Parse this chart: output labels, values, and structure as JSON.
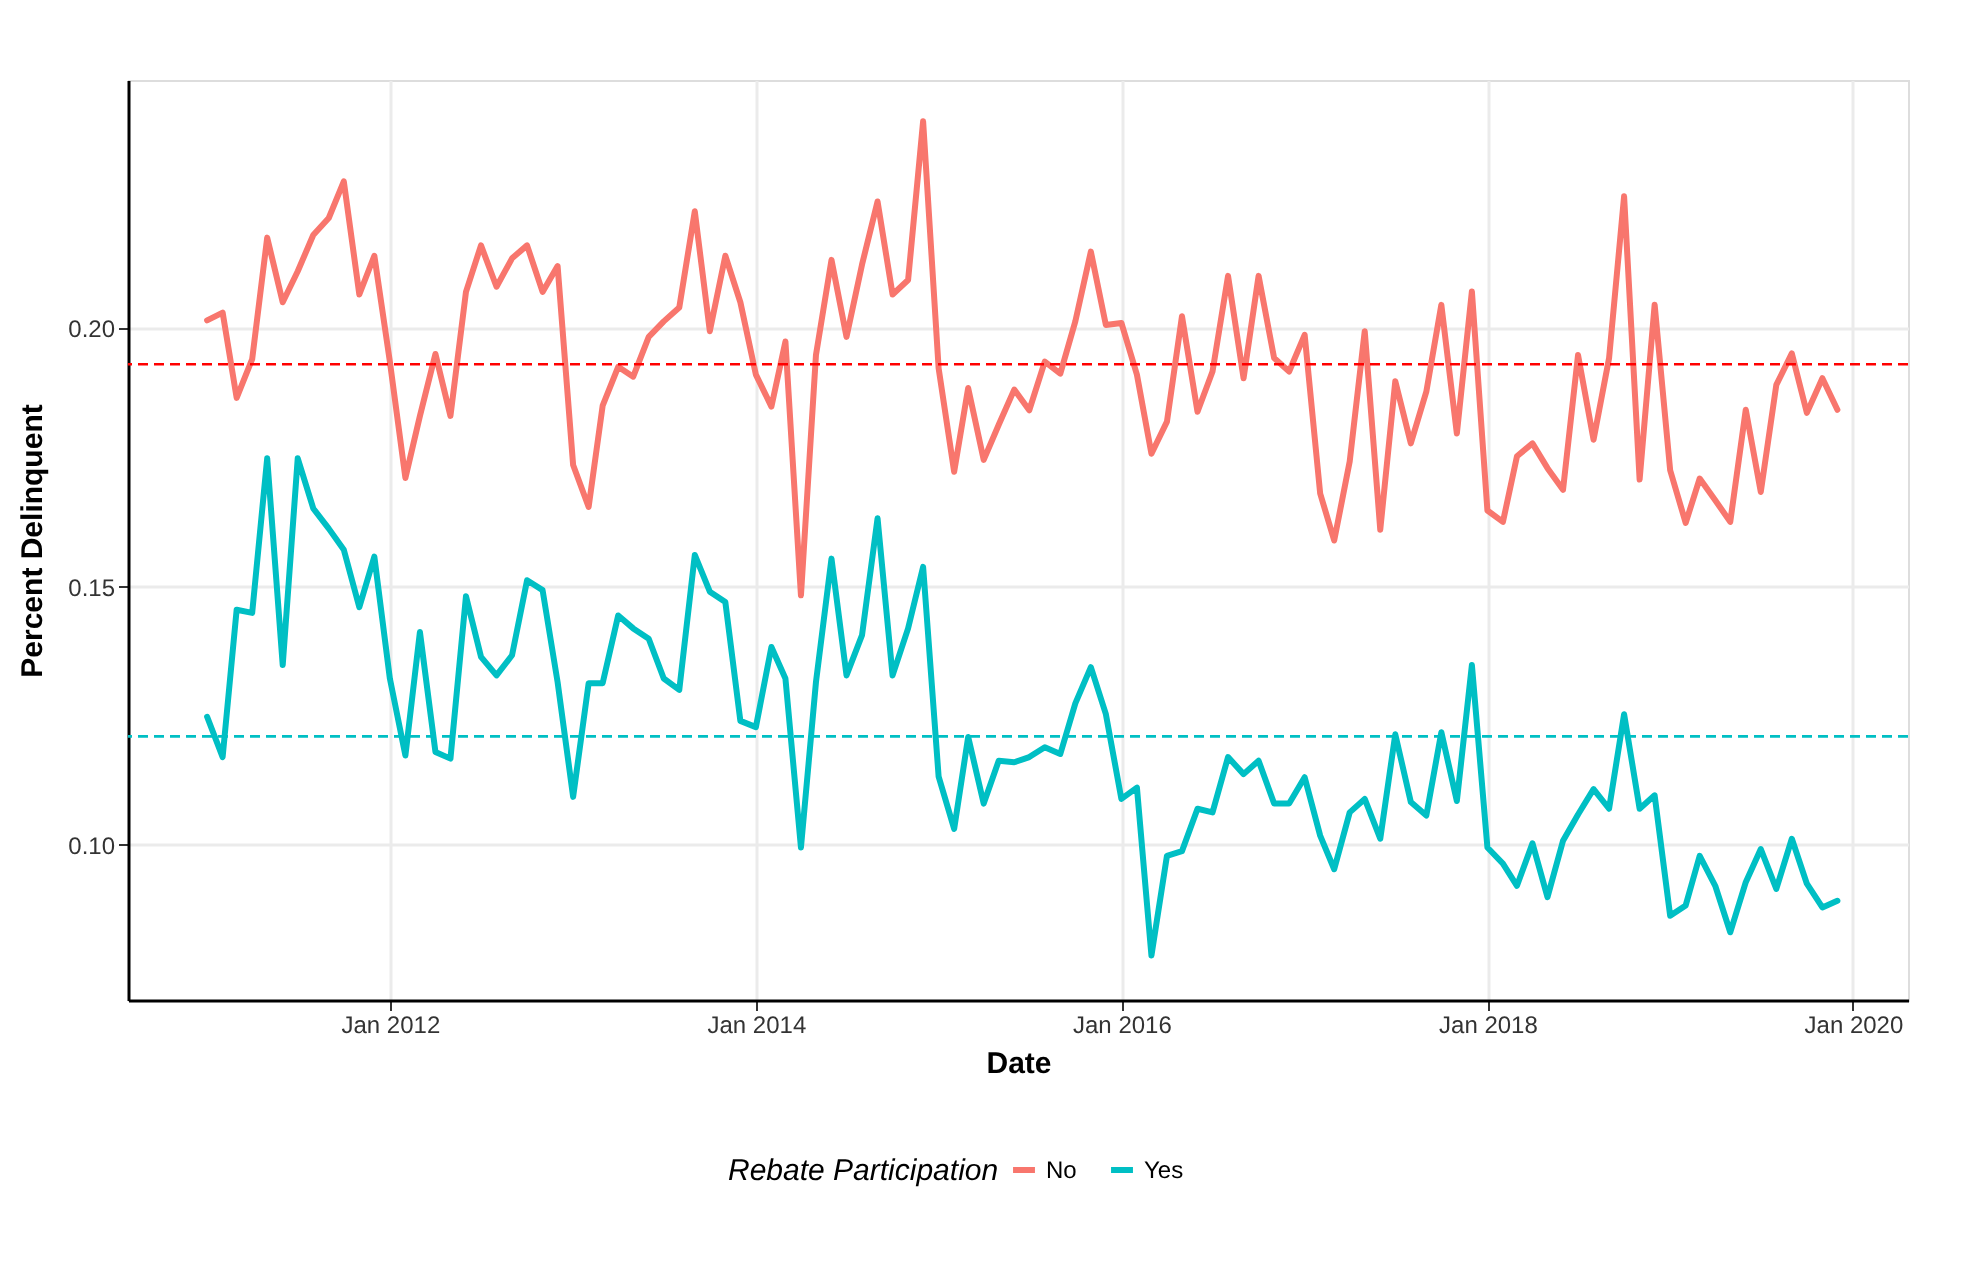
{
  "chart_data": {
    "type": "line",
    "xlabel": "Date",
    "ylabel": "Percent Delinquent",
    "legend_title": "Rebate Participation",
    "x": [
      "2011-01",
      "2011-02",
      "2011-03",
      "2011-04",
      "2011-05",
      "2011-06",
      "2011-07",
      "2011-08",
      "2011-09",
      "2011-10",
      "2011-11",
      "2011-12",
      "2012-01",
      "2012-02",
      "2012-03",
      "2012-04",
      "2012-05",
      "2012-06",
      "2012-07",
      "2012-08",
      "2012-09",
      "2012-10",
      "2012-11",
      "2012-12",
      "2013-01",
      "2013-02",
      "2013-03",
      "2013-04",
      "2013-05",
      "2013-06",
      "2013-07",
      "2013-08",
      "2013-09",
      "2013-10",
      "2013-11",
      "2013-12",
      "2014-01",
      "2014-02",
      "2014-03",
      "2014-04",
      "2014-05",
      "2014-06",
      "2014-07",
      "2014-08",
      "2014-09",
      "2014-10",
      "2014-11",
      "2014-12",
      "2015-01",
      "2015-02",
      "2015-03",
      "2015-04",
      "2015-05",
      "2015-06",
      "2015-07",
      "2015-08",
      "2015-09",
      "2015-10",
      "2015-11",
      "2015-12",
      "2016-01",
      "2016-02",
      "2016-03",
      "2016-04",
      "2016-05",
      "2016-06",
      "2016-07",
      "2016-08",
      "2016-09",
      "2016-10",
      "2016-11",
      "2016-12",
      "2017-01",
      "2017-02",
      "2017-03",
      "2017-04",
      "2017-05",
      "2017-06",
      "2017-07",
      "2017-08",
      "2017-09",
      "2017-10",
      "2017-11",
      "2017-12",
      "2018-01",
      "2018-02",
      "2018-03",
      "2018-04",
      "2018-05",
      "2018-06",
      "2018-07",
      "2018-08",
      "2018-09",
      "2018-10",
      "2018-11",
      "2018-12",
      "2019-01",
      "2019-02",
      "2019-03",
      "2019-04",
      "2019-05",
      "2019-06",
      "2019-07",
      "2019-08",
      "2019-09",
      "2019-10",
      "2019-11",
      "2019-12"
    ],
    "series": [
      {
        "name": "No",
        "color": "#f8766d",
        "values": [
          0.2015,
          0.203,
          0.1865,
          0.194,
          0.2175,
          0.205,
          0.211,
          0.218,
          0.2213,
          0.2284,
          0.2065,
          0.214,
          0.1935,
          0.171,
          0.183,
          0.195,
          0.183,
          0.207,
          0.216,
          0.208,
          0.2135,
          0.216,
          0.207,
          0.212,
          0.1735,
          0.1654,
          0.185,
          0.1925,
          0.1906,
          0.1983,
          0.2013,
          0.204,
          0.2226,
          0.1994,
          0.214,
          0.205,
          0.191,
          0.1848,
          0.1974,
          0.1483,
          0.1948,
          0.2132,
          0.1983,
          0.2123,
          0.2245,
          0.2065,
          0.2093,
          0.24,
          0.1922,
          0.1722,
          0.1884,
          0.1745,
          0.1813,
          0.1881,
          0.1841,
          0.1935,
          0.1912,
          0.2013,
          0.2148,
          0.2006,
          0.201,
          0.191,
          0.1757,
          0.1819,
          0.2023,
          0.1838,
          0.1916,
          0.2101,
          0.1903,
          0.2101,
          0.1942,
          0.1916,
          0.1987,
          0.168,
          0.1589,
          0.1742,
          0.1994,
          0.161,
          0.1897,
          0.1777,
          0.1877,
          0.2045,
          0.1796,
          0.2071,
          0.1647,
          0.1625,
          0.1752,
          0.1777,
          0.1729,
          0.1687,
          0.1948,
          0.1784,
          0.1942,
          0.2255,
          0.1707,
          0.2045,
          0.1725,
          0.1623,
          0.1709,
          0.1667,
          0.1625,
          0.1842,
          0.1683,
          0.189,
          0.1951,
          0.1836,
          0.1903,
          0.1842
        ]
      },
      {
        "name": "Yes",
        "color": "#00bfc4",
        "values": [
          0.1248,
          0.117,
          0.1455,
          0.1449,
          0.1748,
          0.1348,
          0.1748,
          0.1651,
          0.1612,
          0.1571,
          0.146,
          0.1558,
          0.1322,
          0.1173,
          0.1412,
          0.118,
          0.1167,
          0.1481,
          0.1364,
          0.1328,
          0.1367,
          0.1512,
          0.1493,
          0.1315,
          0.1093,
          0.1313,
          0.1313,
          0.1444,
          0.1419,
          0.1399,
          0.1322,
          0.13,
          0.1561,
          0.149,
          0.147,
          0.124,
          0.1228,
          0.1383,
          0.1322,
          0.0995,
          0.1315,
          0.1554,
          0.1328,
          0.1406,
          0.1632,
          0.1328,
          0.1419,
          0.1538,
          0.1132,
          0.1031,
          0.1209,
          0.108,
          0.1163,
          0.116,
          0.117,
          0.1189,
          0.1176,
          0.1274,
          0.1344,
          0.1253,
          0.1089,
          0.1111,
          0.0786,
          0.0979,
          0.0988,
          0.107,
          0.1063,
          0.117,
          0.1137,
          0.1163,
          0.108,
          0.108,
          0.1131,
          0.1018,
          0.0953,
          0.1063,
          0.1089,
          0.1012,
          0.1214,
          0.1083,
          0.1057,
          0.1218,
          0.1085,
          0.1348,
          0.0995,
          0.0964,
          0.0921,
          0.1003,
          0.0899,
          0.1008,
          0.1059,
          0.1108,
          0.107,
          0.1253,
          0.107,
          0.1096,
          0.0863,
          0.0883,
          0.0979,
          0.0921,
          0.0831,
          0.0928,
          0.0992,
          0.0915,
          0.1012,
          0.0925,
          0.0879,
          0.0892
        ]
      }
    ],
    "ref_lines": [
      {
        "axis": "y",
        "value": 0.193,
        "color": "#ff0000",
        "line_style": "dashed"
      },
      {
        "axis": "y",
        "value": 0.121,
        "color": "#00bfc4",
        "line_style": "dashed"
      }
    ],
    "xlim": [
      "2010-07-27",
      "2020-04-20"
    ],
    "xticks": [
      {
        "value": "2012-01",
        "label": "Jan 2012"
      },
      {
        "value": "2014-01",
        "label": "Jan 2014"
      },
      {
        "value": "2016-01",
        "label": "Jan 2016"
      },
      {
        "value": "2018-01",
        "label": "Jan 2018"
      },
      {
        "value": "2020-01",
        "label": "Jan 2020"
      }
    ],
    "ylim": [
      0.07,
      0.248
    ],
    "yticks": [
      {
        "value": 0.1,
        "label": "0.10"
      },
      {
        "value": 0.15,
        "label": "0.15"
      },
      {
        "value": 0.2,
        "label": "0.20"
      }
    ],
    "grid": true,
    "legend": "bottom",
    "line_style": "solid"
  }
}
